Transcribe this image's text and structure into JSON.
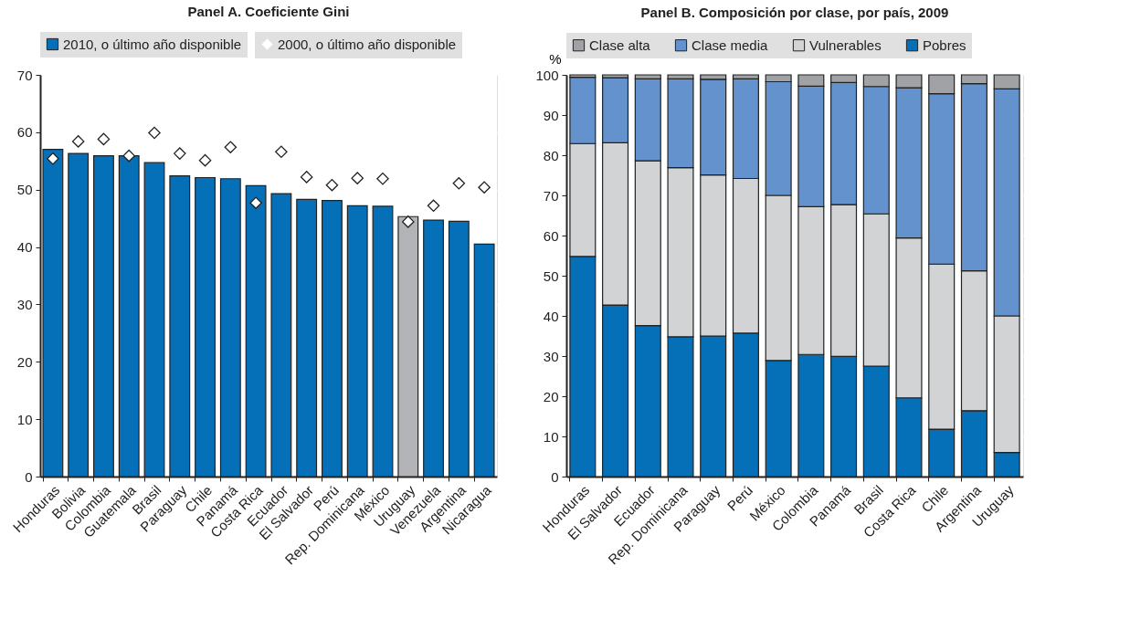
{
  "chart_data": [
    {
      "type": "bar",
      "title": "Panel A. Coeficiente Gini",
      "categories": [
        "Honduras",
        "Bolivia",
        "Colombia",
        "Guatemala",
        "Brasil",
        "Paraguay",
        "Chile",
        "Panamá",
        "Costa Rica",
        "Ecuador",
        "El Salvador",
        "Perú",
        "Rep. Dominicana",
        "México",
        "Uruguay",
        "Venezuela",
        "Argentina",
        "Nicaragua"
      ],
      "series": [
        {
          "name": "2010, o último año disponible",
          "color": "#0570b8",
          "colors": [
            "#0570b8",
            "#0570b8",
            "#0570b8",
            "#0570b8",
            "#0570b8",
            "#0570b8",
            "#0570b8",
            "#0570b8",
            "#0570b8",
            "#0570b8",
            "#0570b8",
            "#0570b8",
            "#0570b8",
            "#0570b8",
            "#b3b4b8",
            "#0570b8",
            "#0570b8",
            "#0570b8"
          ],
          "values": [
            57.0,
            56.3,
            55.9,
            55.9,
            54.7,
            52.4,
            52.1,
            51.9,
            50.7,
            49.3,
            48.3,
            48.1,
            47.2,
            47.1,
            45.3,
            44.7,
            44.5,
            40.5
          ]
        },
        {
          "name": "2000, o último año disponible",
          "type": "scatter",
          "marker": "diamond",
          "color": "#ffffff",
          "values": [
            55.4,
            58.4,
            58.8,
            55.9,
            59.9,
            56.3,
            55.1,
            57.4,
            47.7,
            56.6,
            52.2,
            50.8,
            52.0,
            51.9,
            44.4,
            47.2,
            51.1,
            50.4
          ]
        }
      ],
      "ylim": [
        0,
        70
      ],
      "yticks": [
        0,
        10,
        20,
        30,
        40,
        50,
        60,
        70
      ],
      "grid": true,
      "legend": "top"
    },
    {
      "type": "bar",
      "title": "Panel B. Composición por clase, por país, 2009",
      "ylabel": "%",
      "stacked": true,
      "categories": [
        "Honduras",
        "El Salvador",
        "Ecuador",
        "Rep. Dominicana",
        "Paraguay",
        "Perú",
        "México",
        "Colombia",
        "Panamá",
        "Brasil",
        "Costa Rica",
        "Chile",
        "Argentina",
        "Uruguay"
      ],
      "series": [
        {
          "name": "Pobres",
          "color": "#0570b8",
          "values": [
            54.8,
            42.7,
            37.6,
            34.8,
            35.0,
            35.7,
            28.9,
            30.4,
            29.9,
            27.5,
            19.6,
            11.8,
            16.4,
            6.0
          ]
        },
        {
          "name": "Vulnerables",
          "color": "#d2d3d5",
          "values": [
            28.1,
            40.4,
            41.0,
            42.1,
            40.1,
            38.5,
            41.1,
            36.8,
            37.8,
            37.9,
            39.8,
            41.1,
            34.8,
            34.0
          ]
        },
        {
          "name": "Clase media",
          "color": "#6492cc",
          "values": [
            16.5,
            16.2,
            20.4,
            22.1,
            23.8,
            24.8,
            28.3,
            30.0,
            30.4,
            31.7,
            37.4,
            42.4,
            46.6,
            56.5
          ]
        },
        {
          "name": "Clase alta",
          "color": "#a1a2a5",
          "values": [
            0.6,
            0.7,
            1.0,
            1.0,
            1.1,
            1.0,
            1.7,
            2.8,
            1.9,
            2.9,
            3.2,
            4.7,
            2.2,
            3.5
          ]
        }
      ],
      "ylim": [
        0,
        100
      ],
      "yticks": [
        0,
        10,
        20,
        30,
        40,
        50,
        60,
        70,
        80,
        90,
        100
      ],
      "grid": true,
      "legend": "top"
    }
  ]
}
